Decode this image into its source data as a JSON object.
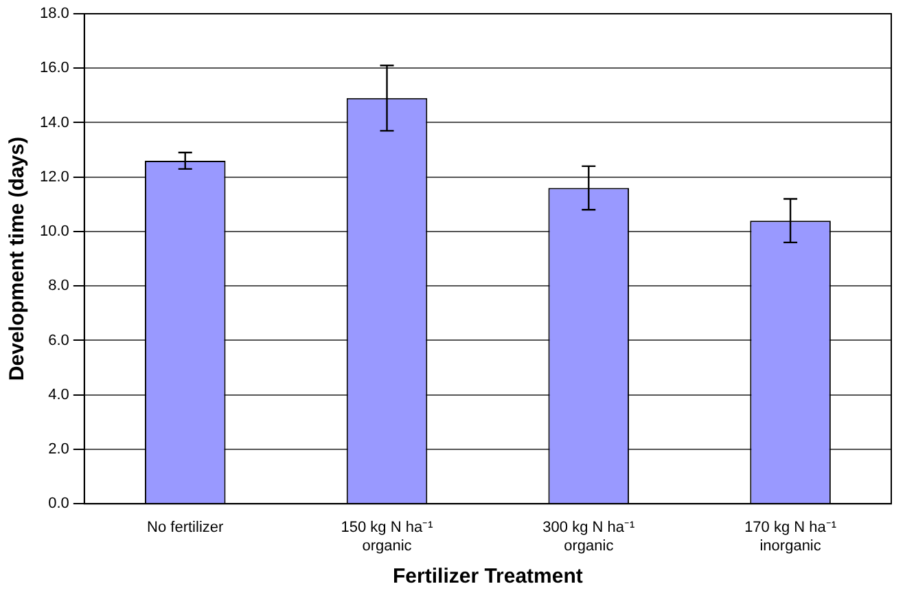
{
  "chart_data": {
    "type": "bar",
    "categories": [
      "No fertilizer",
      "150 kg N ha⁻¹\norganic",
      "300 kg N ha⁻¹\norganic",
      "170 kg N ha⁻¹\ninorganic"
    ],
    "values": [
      12.6,
      14.9,
      11.6,
      10.4
    ],
    "color": "#9999ff",
    "errors": [
      0.3,
      1.2,
      0.8,
      0.8
    ],
    "xlabel": "Fertilizer Treatment",
    "ylabel": "Development time (days)",
    "ylim": [
      0,
      18
    ],
    "yticks": [
      {
        "value": 0,
        "label": "0.0"
      },
      {
        "value": 2,
        "label": "2.0"
      },
      {
        "value": 4,
        "label": "4.0"
      },
      {
        "value": 6,
        "label": "6.0"
      },
      {
        "value": 8,
        "label": "8.0"
      },
      {
        "value": 10,
        "label": "10.0"
      },
      {
        "value": 12,
        "label": "12.0"
      },
      {
        "value": 14,
        "label": "14.0"
      },
      {
        "value": 16,
        "label": "16.0"
      },
      {
        "value": 18,
        "label": "18.0"
      }
    ],
    "grid": "y",
    "legend": false
  }
}
